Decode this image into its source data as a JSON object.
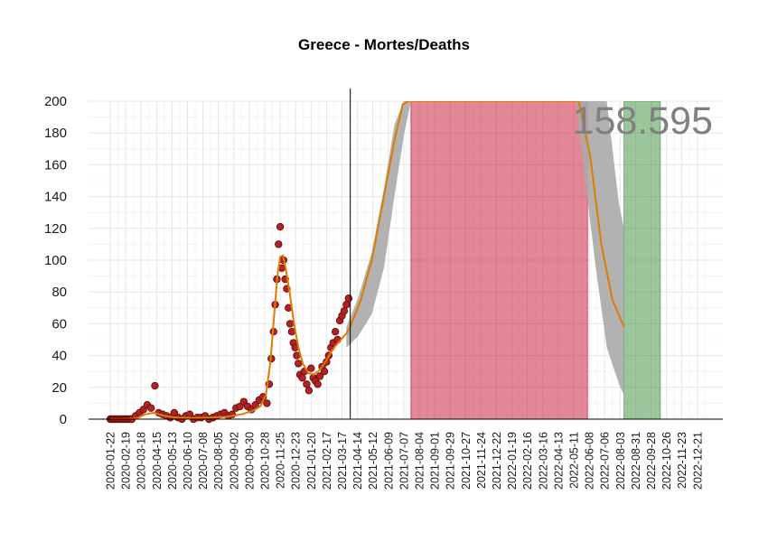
{
  "chart_data": {
    "type": "line",
    "title": "Greece - Mortes/Deaths",
    "xlabel": "",
    "ylabel": "",
    "ylim": [
      0,
      200
    ],
    "grid": true,
    "y_ticks": [
      0,
      20,
      40,
      60,
      80,
      100,
      120,
      140,
      160,
      180,
      200
    ],
    "x_ticks": [
      "2020-01-22",
      "2020-02-19",
      "2020-03-18",
      "2020-04-15",
      "2020-05-13",
      "2020-06-10",
      "2020-07-08",
      "2020-08-05",
      "2020-09-02",
      "2020-09-30",
      "2020-10-28",
      "2020-11-25",
      "2020-12-23",
      "2021-01-20",
      "2021-02-17",
      "2021-03-17",
      "2021-04-14",
      "2021-05-12",
      "2021-06-09",
      "2021-07-07",
      "2021-08-04",
      "2021-09-01",
      "2021-09-29",
      "2021-10-27",
      "2021-11-24",
      "2021-12-22",
      "2022-01-19",
      "2022-02-16",
      "2022-03-16",
      "2022-04-13",
      "2022-05-11",
      "2022-06-08",
      "2022-07-06",
      "2022-08-03",
      "2022-08-31",
      "2022-09-28",
      "2022-10-26",
      "2022-11-23",
      "2022-12-21"
    ],
    "annotation": "158.595",
    "vertical_line_date": "2021-04-01",
    "smoothed_curve": {
      "dates": [
        "2020-01-22",
        "2020-02-19",
        "2020-03-10",
        "2020-03-25",
        "2020-04-10",
        "2020-04-30",
        "2020-05-20",
        "2020-06-20",
        "2020-07-20",
        "2020-08-20",
        "2020-09-15",
        "2020-10-05",
        "2020-10-20",
        "2020-10-30",
        "2020-11-07",
        "2020-11-14",
        "2020-11-20",
        "2020-11-25",
        "2020-11-30",
        "2020-12-05",
        "2020-12-12",
        "2020-12-20",
        "2020-12-28",
        "2021-01-05",
        "2021-01-15",
        "2021-01-25",
        "2021-02-05",
        "2021-02-15",
        "2021-02-25",
        "2021-03-05",
        "2021-03-15",
        "2021-03-25",
        "2021-04-01",
        "2021-04-20",
        "2021-05-10",
        "2021-06-01",
        "2021-06-20",
        "2021-07-05",
        "2021-07-15",
        "2022-05-20",
        "2022-06-10",
        "2022-06-30",
        "2022-07-20",
        "2022-08-10"
      ],
      "values": [
        0,
        0,
        0.5,
        3,
        4,
        2,
        1,
        0.8,
        1,
        1.5,
        3,
        5,
        8,
        15,
        35,
        65,
        90,
        102,
        103,
        95,
        80,
        60,
        45,
        35,
        29,
        28,
        31,
        36,
        42,
        46,
        50,
        54,
        58,
        75,
        100,
        140,
        175,
        198,
        210,
        210,
        165,
        110,
        75,
        58
      ]
    },
    "projection_band": {
      "dates": [
        "2021-03-25",
        "2021-04-15",
        "2021-05-10",
        "2021-06-01",
        "2021-06-20",
        "2021-07-07",
        "2021-07-20",
        "2022-05-15",
        "2022-06-01",
        "2022-06-20",
        "2022-07-10",
        "2022-08-01",
        "2022-08-10"
      ],
      "lower": [
        45,
        52,
        66,
        95,
        140,
        178,
        200,
        200,
        150,
        95,
        45,
        22,
        15
      ],
      "upper": [
        58,
        76,
        105,
        145,
        185,
        205,
        210,
        210,
        210,
        210,
        200,
        135,
        120
      ]
    },
    "shaded_regions": [
      {
        "start": "2021-07-20",
        "end": "2022-06-05",
        "color": "#C8102E"
      },
      {
        "start": "2022-08-10",
        "end": "2022-10-15",
        "color": "#3A8F3A"
      }
    ],
    "daily_points": {
      "note_free_dates": true,
      "dates": [
        "2020-03-01",
        "2020-03-08",
        "2020-03-15",
        "2020-03-22",
        "2020-03-29",
        "2020-04-05",
        "2020-04-12",
        "2020-04-19",
        "2020-04-26",
        "2020-05-03",
        "2020-05-10",
        "2020-05-17",
        "2020-05-24",
        "2020-05-31",
        "2020-06-07",
        "2020-06-14",
        "2020-06-21",
        "2020-06-28",
        "2020-07-05",
        "2020-07-12",
        "2020-07-19",
        "2020-07-26",
        "2020-08-02",
        "2020-08-09",
        "2020-08-16",
        "2020-08-23",
        "2020-08-30",
        "2020-09-06",
        "2020-09-13",
        "2020-09-20",
        "2020-09-27",
        "2020-10-04",
        "2020-10-11",
        "2020-10-18",
        "2020-10-25",
        "2020-11-01",
        "2020-11-05",
        "2020-11-09",
        "2020-11-13",
        "2020-11-16",
        "2020-11-19",
        "2020-11-22",
        "2020-11-25",
        "2020-11-28",
        "2020-12-01",
        "2020-12-04",
        "2020-12-07",
        "2020-12-10",
        "2020-12-13",
        "2020-12-16",
        "2020-12-19",
        "2020-12-22",
        "2020-12-25",
        "2020-12-28",
        "2020-12-31",
        "2021-01-04",
        "2021-01-08",
        "2021-01-12",
        "2021-01-16",
        "2021-01-20",
        "2021-01-24",
        "2021-01-28",
        "2021-02-01",
        "2021-02-05",
        "2021-02-09",
        "2021-02-13",
        "2021-02-17",
        "2021-02-21",
        "2021-02-25",
        "2021-03-01",
        "2021-03-05",
        "2021-03-09",
        "2021-03-13",
        "2021-03-17",
        "2021-03-21",
        "2021-03-25",
        "2021-03-29"
      ],
      "values": [
        0,
        2,
        4,
        6,
        9,
        7,
        21,
        4,
        3,
        2,
        1,
        4,
        1,
        0,
        2,
        3,
        0,
        1,
        1,
        2,
        0,
        1,
        2,
        3,
        4,
        2,
        3,
        7,
        8,
        11,
        8,
        6,
        9,
        12,
        14,
        10,
        22,
        38,
        55,
        72,
        88,
        110,
        121,
        95,
        100,
        88,
        82,
        70,
        60,
        55,
        48,
        45,
        40,
        35,
        28,
        26,
        30,
        22,
        18,
        32,
        26,
        24,
        22,
        27,
        33,
        30,
        36,
        40,
        45,
        48,
        55,
        50,
        62,
        65,
        68,
        72,
        76
      ]
    },
    "colors": {
      "points": "#B22222",
      "points_outline": "#5A0A0A",
      "curve": "#E07B00",
      "band": "#AAAAAA",
      "axis": "#000000",
      "grid": "#E5E5E5"
    }
  }
}
